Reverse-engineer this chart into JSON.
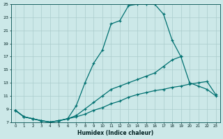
{
  "xlabel": "Humidex (Indice chaleur)",
  "bg_color": "#cce8e8",
  "grid_color": "#aacccc",
  "line_color": "#007070",
  "xlim": [
    -0.5,
    23.5
  ],
  "ylim": [
    7,
    25
  ],
  "xticks": [
    0,
    1,
    2,
    3,
    4,
    5,
    6,
    7,
    8,
    9,
    10,
    11,
    12,
    13,
    14,
    15,
    16,
    17,
    18,
    19,
    20,
    21,
    22,
    23
  ],
  "yticks": [
    7,
    9,
    11,
    13,
    15,
    17,
    19,
    21,
    23,
    25
  ],
  "line_max": [
    8.8,
    7.8,
    7.5,
    7.2,
    7.0,
    7.2,
    7.5,
    9.5,
    13.0,
    16.0,
    18.0,
    22.0,
    22.5,
    24.8,
    25.0,
    25.0,
    25.0,
    23.5,
    19.5,
    17.0,
    null,
    null,
    null,
    null
  ],
  "line_mean": [
    8.8,
    7.8,
    7.5,
    7.2,
    7.0,
    7.2,
    7.5,
    8.0,
    9.0,
    10.0,
    11.0,
    12.0,
    12.5,
    13.0,
    13.5,
    14.0,
    14.5,
    15.5,
    16.5,
    17.0,
    13.0,
    12.5,
    12.0,
    11.0
  ],
  "line_min": [
    8.8,
    7.8,
    7.5,
    7.2,
    7.0,
    7.2,
    7.5,
    7.8,
    8.2,
    8.8,
    9.2,
    9.8,
    10.2,
    10.8,
    11.2,
    11.5,
    11.8,
    12.0,
    12.3,
    12.5,
    12.8,
    13.0,
    13.2,
    11.2
  ]
}
